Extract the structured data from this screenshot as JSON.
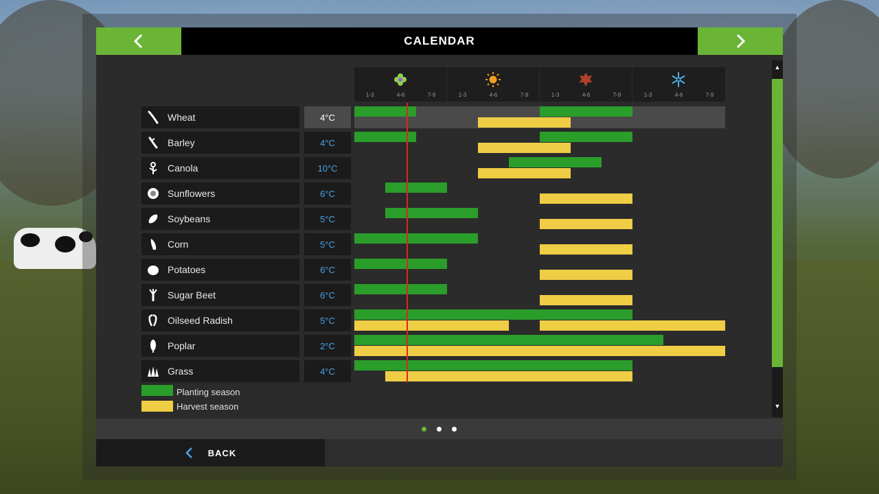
{
  "header": {
    "title": "CALENDAR",
    "prev_icon": "chevron-left-icon",
    "next_icon": "chevron-right-icon"
  },
  "seasons": [
    {
      "name": "spring",
      "icon": "flower-icon",
      "color": "#8fd04f"
    },
    {
      "name": "summer",
      "icon": "sun-icon",
      "color": "#f0a020"
    },
    {
      "name": "autumn",
      "icon": "leaf-icon",
      "color": "#b0402a"
    },
    {
      "name": "winter",
      "icon": "snowflake-icon",
      "color": "#4ab3e6"
    }
  ],
  "month_labels": [
    "1-3",
    "4-6",
    "7-9",
    "1-3",
    "4-6",
    "7-9",
    "1-3",
    "4-6",
    "7-9",
    "1-3",
    "4-6",
    "7-9"
  ],
  "current_period": 1.7,
  "crops": [
    {
      "name": "Wheat",
      "temp": "4°C",
      "icon": "wheat-icon",
      "selected": true,
      "plant": [
        [
          0,
          2
        ],
        [
          6,
          9
        ]
      ],
      "harvest": [
        [
          4,
          7
        ]
      ]
    },
    {
      "name": "Barley",
      "temp": "4°C",
      "icon": "barley-icon",
      "plant": [
        [
          0,
          2
        ],
        [
          6,
          9
        ]
      ],
      "harvest": [
        [
          4,
          7
        ]
      ]
    },
    {
      "name": "Canola",
      "temp": "10°C",
      "icon": "canola-icon",
      "plant": [
        [
          5,
          8
        ]
      ],
      "harvest": [
        [
          4,
          7
        ]
      ]
    },
    {
      "name": "Sunflowers",
      "temp": "6°C",
      "icon": "sunflower-icon",
      "plant": [
        [
          1,
          3
        ]
      ],
      "harvest": [
        [
          6,
          9
        ]
      ]
    },
    {
      "name": "Soybeans",
      "temp": "5°C",
      "icon": "soybean-icon",
      "plant": [
        [
          1,
          4
        ]
      ],
      "harvest": [
        [
          6,
          9
        ]
      ]
    },
    {
      "name": "Corn",
      "temp": "5°C",
      "icon": "corn-icon",
      "plant": [
        [
          0,
          4
        ]
      ],
      "harvest": [
        [
          6,
          9
        ]
      ]
    },
    {
      "name": "Potatoes",
      "temp": "6°C",
      "icon": "potato-icon",
      "plant": [
        [
          0,
          3
        ]
      ],
      "harvest": [
        [
          6,
          9
        ]
      ]
    },
    {
      "name": "Sugar Beet",
      "temp": "6°C",
      "icon": "sugar-beet-icon",
      "plant": [
        [
          0,
          3
        ]
      ],
      "harvest": [
        [
          6,
          9
        ]
      ]
    },
    {
      "name": "Oilseed Radish",
      "temp": "5°C",
      "icon": "radish-icon",
      "plant": [
        [
          0,
          9
        ]
      ],
      "harvest": [
        [
          0,
          5
        ],
        [
          6,
          12
        ]
      ]
    },
    {
      "name": "Poplar",
      "temp": "2°C",
      "icon": "poplar-icon",
      "plant": [
        [
          0,
          10
        ]
      ],
      "harvest": [
        [
          0,
          12
        ]
      ]
    },
    {
      "name": "Grass",
      "temp": "4°C",
      "icon": "grass-icon",
      "plant": [
        [
          0,
          9
        ]
      ],
      "harvest": [
        [
          1,
          9
        ]
      ]
    }
  ],
  "legend": {
    "planting": "Planting season",
    "harvest": "Harvest season"
  },
  "colors": {
    "accent": "#6bb536",
    "planting": "#2a9d2a",
    "harvest": "#efcd45",
    "current_marker": "#d9271c",
    "temperature": "#4aa3e6"
  },
  "pager": {
    "pages": 3,
    "current": 0
  },
  "footer": {
    "back_label": "BACK",
    "back_icon": "chevron-left-icon"
  },
  "scrollbar": {
    "up_icon": "arrow-up-icon",
    "down_icon": "arrow-down-icon"
  }
}
